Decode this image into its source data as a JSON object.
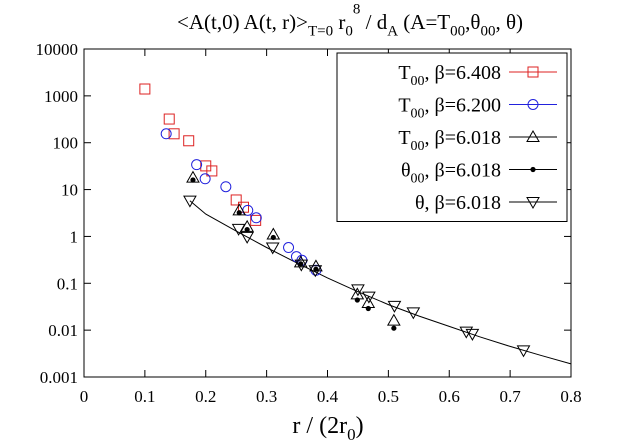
{
  "chart_data": {
    "type": "scatter",
    "title": {
      "parts": [
        {
          "t": "<A(t,0) A(t, r)>"
        },
        {
          "t": "T=0",
          "s": "sub"
        },
        {
          "t": "  r"
        },
        {
          "t": "0",
          "s": "sub"
        },
        {
          "t": "8",
          "s": "sup"
        },
        {
          "t": " / d"
        },
        {
          "t": "A",
          "s": "sub"
        },
        {
          "t": "    (A=T"
        },
        {
          "t": "00",
          "s": "sub"
        },
        {
          "t": ",θ"
        },
        {
          "t": "00",
          "s": "sub"
        },
        {
          "t": ", θ)"
        }
      ]
    },
    "xlabel": {
      "parts": [
        {
          "t": "r / (2r"
        },
        {
          "t": "0",
          "s": "sub"
        },
        {
          "t": ")"
        }
      ]
    },
    "ylabel": "",
    "xlim": [
      0,
      0.8
    ],
    "ylim": [
      0.001,
      10000
    ],
    "yscale": "log",
    "grid": false,
    "legend_position": "top-right",
    "x_ticks": [
      0,
      0.1,
      0.2,
      0.3,
      0.4,
      0.5,
      0.6,
      0.7,
      0.8
    ],
    "x_tick_labels": [
      "0",
      "0.1",
      "0.2",
      "0.3",
      "0.4",
      "0.5",
      "0.6",
      "0.7",
      "0.8"
    ],
    "y_ticks": [
      0.001,
      0.01,
      0.1,
      1,
      10,
      100,
      1000,
      10000
    ],
    "y_tick_labels": [
      "0.001",
      "0.01",
      "0.1",
      "1",
      "10",
      "100",
      "1000",
      "10000"
    ],
    "series": [
      {
        "name": "T00, β=6.408",
        "label_parts": [
          {
            "t": "T"
          },
          {
            "t": "00",
            "s": "sub"
          },
          {
            "t": ", β=6.408"
          }
        ],
        "marker": "square-open",
        "color": "#dd2222",
        "legend_line_color": "#dd2222",
        "points": [
          [
            0.1,
            1400
          ],
          [
            0.14,
            320
          ],
          [
            0.148,
            155
          ],
          [
            0.172,
            110
          ],
          [
            0.2,
            32
          ],
          [
            0.21,
            25
          ],
          [
            0.25,
            6.0
          ],
          [
            0.262,
            4.2
          ],
          [
            0.282,
            2.2
          ]
        ]
      },
      {
        "name": "T00, β=6.200",
        "label_parts": [
          {
            "t": "T"
          },
          {
            "t": "00",
            "s": "sub"
          },
          {
            "t": ", β=6.200"
          }
        ],
        "marker": "circle-open",
        "color": "#2222dd",
        "legend_line_color": "#2222dd",
        "points": [
          [
            0.135,
            155
          ],
          [
            0.185,
            34
          ],
          [
            0.199,
            17
          ],
          [
            0.233,
            11.5
          ],
          [
            0.269,
            3.6
          ],
          [
            0.283,
            2.5
          ],
          [
            0.336,
            0.58
          ],
          [
            0.349,
            0.37
          ],
          [
            0.358,
            0.31
          ],
          [
            0.381,
            0.19
          ]
        ]
      },
      {
        "name": "T00, β=6.018",
        "label_parts": [
          {
            "t": "T"
          },
          {
            "t": "00",
            "s": "sub"
          },
          {
            "t": ", β=6.018"
          }
        ],
        "marker": "triangle-up-open",
        "color": "#000000",
        "legend_line_color": "#000000",
        "points": [
          [
            0.179,
            18
          ],
          [
            0.255,
            3.6
          ],
          [
            0.268,
            1.6
          ],
          [
            0.311,
            1.1
          ],
          [
            0.356,
            0.28
          ],
          [
            0.381,
            0.23
          ],
          [
            0.449,
            0.058
          ],
          [
            0.467,
            0.038
          ],
          [
            0.509,
            0.016
          ]
        ]
      },
      {
        "name": "θ00, β=6.018",
        "label_parts": [
          {
            "t": "θ"
          },
          {
            "t": "00",
            "s": "sub"
          },
          {
            "t": ", β=6.018"
          }
        ],
        "marker": "dot",
        "color": "#000000",
        "legend_line_color": "#000000",
        "points": [
          [
            0.179,
            16
          ],
          [
            0.255,
            3.2
          ],
          [
            0.268,
            1.4
          ],
          [
            0.311,
            0.95
          ],
          [
            0.356,
            0.26
          ],
          [
            0.381,
            0.2
          ],
          [
            0.449,
            0.044
          ],
          [
            0.467,
            0.029
          ],
          [
            0.509,
            0.011
          ]
        ]
      },
      {
        "name": "θ, β=6.018",
        "label_parts": [
          {
            "t": "θ, β=6.018"
          }
        ],
        "marker": "triangle-down-open",
        "color": "#000000",
        "legend_line_color": "#000000",
        "points": [
          [
            0.174,
            5.8
          ],
          [
            0.254,
            1.45
          ],
          [
            0.268,
            0.98
          ],
          [
            0.31,
            0.58
          ],
          [
            0.357,
            0.25
          ],
          [
            0.38,
            0.19
          ],
          [
            0.45,
            0.074
          ],
          [
            0.468,
            0.052
          ],
          [
            0.51,
            0.033
          ],
          [
            0.541,
            0.024
          ],
          [
            0.628,
            0.0093
          ],
          [
            0.638,
            0.0083
          ],
          [
            0.722,
            0.0037
          ]
        ]
      }
    ],
    "fit_curve": {
      "name": "",
      "color": "#000000",
      "x": [
        0.174,
        0.2,
        0.25,
        0.3,
        0.35,
        0.4,
        0.45,
        0.5,
        0.55,
        0.6,
        0.65,
        0.7,
        0.75,
        0.8
      ],
      "y": [
        5.8,
        3.0,
        1.3,
        0.58,
        0.27,
        0.13,
        0.066,
        0.035,
        0.02,
        0.012,
        0.0072,
        0.0045,
        0.0029,
        0.0019
      ]
    }
  }
}
